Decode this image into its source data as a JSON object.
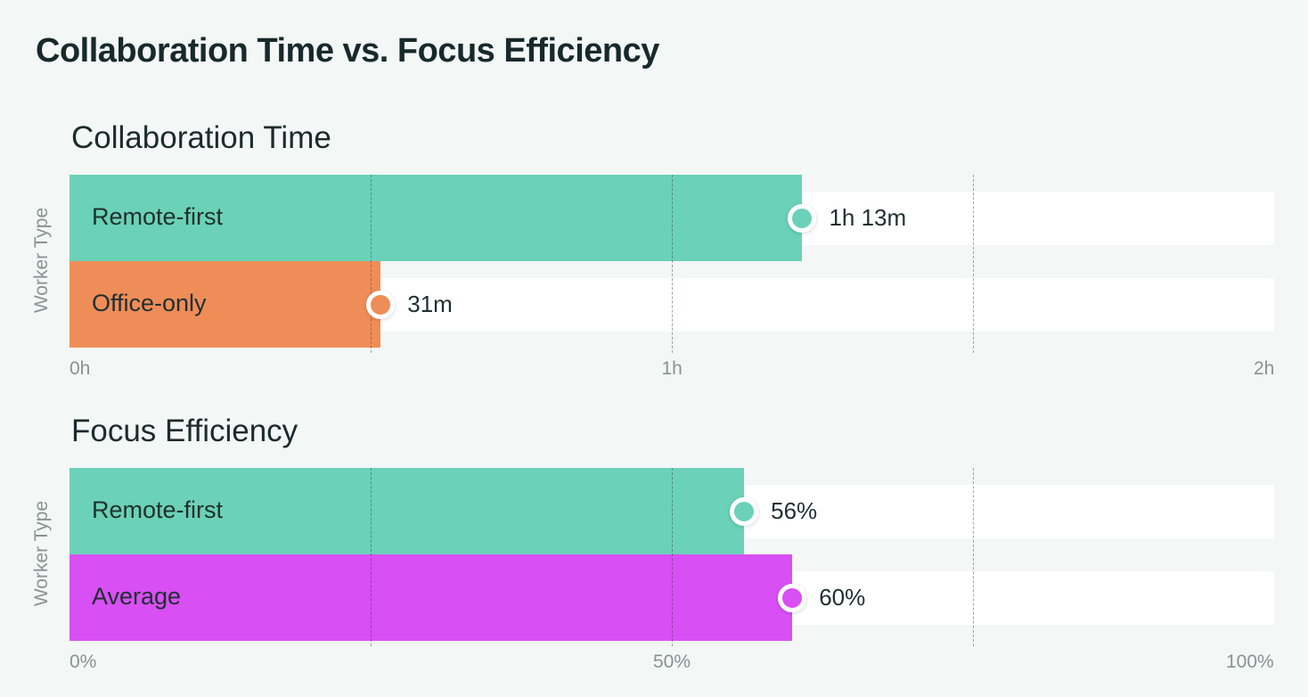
{
  "title": "Collaboration Time vs. Focus Efficiency",
  "chart_data": [
    {
      "type": "bar",
      "orientation": "horizontal",
      "title": "Collaboration Time",
      "ylabel": "Worker Type",
      "xlabel": "",
      "unit": "minutes",
      "xlim": [
        0,
        120
      ],
      "grid_values": [
        30,
        60,
        90
      ],
      "ticks": [
        {
          "value": 0,
          "label": "0h"
        },
        {
          "value": 60,
          "label": "1h"
        },
        {
          "value": 120,
          "label": "2h"
        }
      ],
      "categories": [
        "Remote-first",
        "Office-only"
      ],
      "values": [
        73,
        31
      ],
      "value_labels": [
        "1h 13m",
        "31m"
      ],
      "colors": [
        "#6bd1b8",
        "#ef8d58"
      ]
    },
    {
      "type": "bar",
      "orientation": "horizontal",
      "title": "Focus Efficiency",
      "ylabel": "Worker Type",
      "xlabel": "",
      "unit": "percent",
      "xlim": [
        0,
        100
      ],
      "grid_values": [
        25,
        50,
        75
      ],
      "ticks": [
        {
          "value": 0,
          "label": "0%"
        },
        {
          "value": 50,
          "label": "50%"
        },
        {
          "value": 100,
          "label": "100%"
        }
      ],
      "categories": [
        "Remote-first",
        "Average"
      ],
      "values": [
        56,
        60
      ],
      "value_labels": [
        "56%",
        "60%"
      ],
      "colors": [
        "#6bd1b8",
        "#d84ff3"
      ]
    }
  ]
}
